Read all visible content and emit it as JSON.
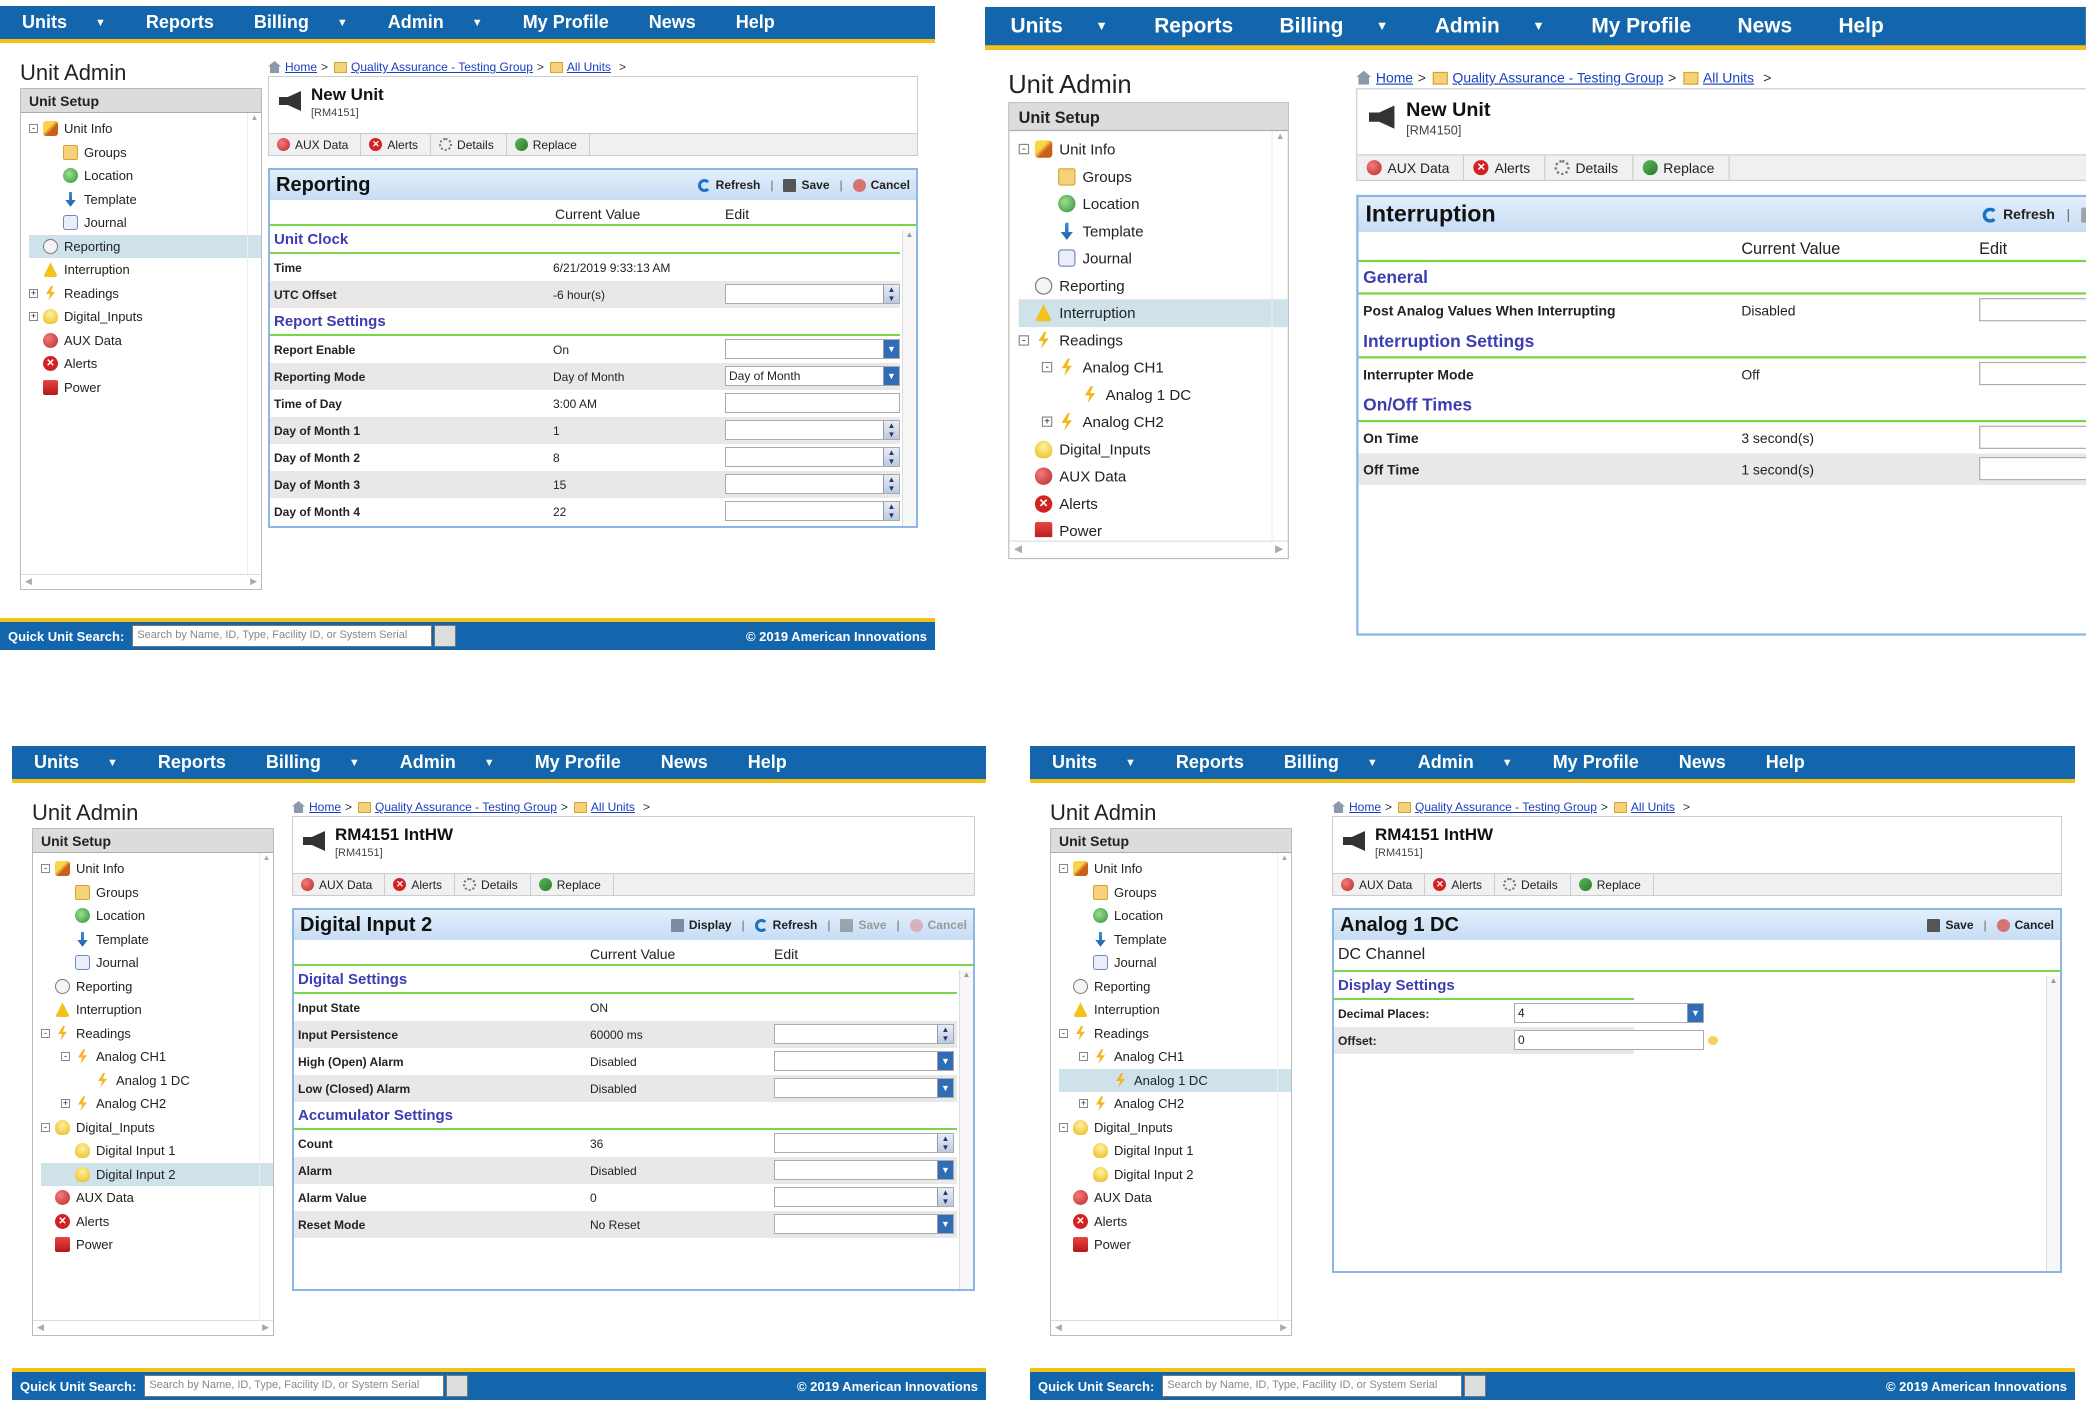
{
  "nav": {
    "items": [
      {
        "label": "Units",
        "dropdown": true
      },
      {
        "label": "Reports",
        "dropdown": false
      },
      {
        "label": "Billing",
        "dropdown": true
      },
      {
        "label": "Admin",
        "dropdown": true
      },
      {
        "label": "My Profile",
        "dropdown": false
      },
      {
        "label": "News",
        "dropdown": false
      },
      {
        "label": "Help",
        "dropdown": false
      }
    ]
  },
  "app_title": "Unit Admin",
  "sidebar_header": "Unit Setup",
  "breadcrumb": {
    "home": "Home",
    "group": "Quality Assurance - Testing Group",
    "all": "All Units",
    "sep": ">"
  },
  "tabs": [
    "AUX Data",
    "Alerts",
    "Details",
    "Replace"
  ],
  "actions": {
    "refresh": "Refresh",
    "save": "Save",
    "cancel": "Cancel",
    "display": "Display"
  },
  "columns": {
    "current": "Current Value",
    "edit": "Edit"
  },
  "footer": {
    "search_label": "Quick Unit Search:",
    "search_placeholder": "Search by Name, ID, Type, Facility ID, or System Serial",
    "copyright": "© 2019 American Innovations"
  },
  "colors": {
    "nav": "#1366ab",
    "accent": "#f2c318",
    "section": "#3b3eb0",
    "rule": "#7bd54a"
  },
  "panels": [
    {
      "unit_name": "New Unit",
      "unit_id": "[RM4151]",
      "tree": [
        {
          "label": "Unit Info",
          "icon": "pencil-icon",
          "level": 0,
          "exp": "-"
        },
        {
          "label": "Groups",
          "icon": "folder-icon",
          "level": 1
        },
        {
          "label": "Location",
          "icon": "globe-icon",
          "level": 1
        },
        {
          "label": "Template",
          "icon": "template-icon",
          "level": 1
        },
        {
          "label": "Journal",
          "icon": "journal-icon",
          "level": 1
        },
        {
          "label": "Reporting",
          "icon": "clock-icon",
          "level": 0,
          "selected": true
        },
        {
          "label": "Interruption",
          "icon": "warning-icon",
          "level": 0
        },
        {
          "label": "Readings",
          "icon": "bolt-icon",
          "level": 0,
          "exp": "+"
        },
        {
          "label": "Digital_Inputs",
          "icon": "bulb-icon",
          "level": 0,
          "exp": "+"
        },
        {
          "label": "AUX Data",
          "icon": "aux-data-icon",
          "level": 0
        },
        {
          "label": "Alerts",
          "icon": "alert-icon",
          "level": 0
        },
        {
          "label": "Power",
          "icon": "power-icon",
          "level": 0
        }
      ],
      "card": {
        "title": "Reporting",
        "actions": [
          "refresh",
          "save",
          "cancel"
        ],
        "disabled": [],
        "sections": [
          {
            "title": "Unit Clock",
            "rows": [
              {
                "label": "Time",
                "value": "6/21/2019 9:33:13 AM",
                "control": "none"
              },
              {
                "label": "UTC Offset",
                "value": "-6 hour(s)",
                "control": "spin",
                "input": ""
              }
            ]
          },
          {
            "title": "Report Settings",
            "rows": [
              {
                "label": "Report Enable",
                "value": "On",
                "control": "select",
                "input": ""
              },
              {
                "label": "Reporting Mode",
                "value": "Day of Month",
                "control": "select",
                "input": "Day of Month"
              },
              {
                "label": "Time of Day",
                "value": "3:00 AM",
                "control": "text",
                "input": ""
              },
              {
                "label": "Day of Month 1",
                "value": "1",
                "control": "spin",
                "input": ""
              },
              {
                "label": "Day of Month 2",
                "value": "8",
                "control": "spin",
                "input": ""
              },
              {
                "label": "Day of Month 3",
                "value": "15",
                "control": "spin",
                "input": ""
              },
              {
                "label": "Day of Month 4",
                "value": "22",
                "control": "spin",
                "input": ""
              }
            ]
          }
        ]
      }
    },
    {
      "unit_name": "New Unit",
      "unit_id": "[RM4150]",
      "tree": [
        {
          "label": "Unit Info",
          "icon": "pencil-icon",
          "level": 0,
          "exp": "-"
        },
        {
          "label": "Groups",
          "icon": "folder-icon",
          "level": 1
        },
        {
          "label": "Location",
          "icon": "globe-icon",
          "level": 1
        },
        {
          "label": "Template",
          "icon": "template-icon",
          "level": 1
        },
        {
          "label": "Journal",
          "icon": "journal-icon",
          "level": 1
        },
        {
          "label": "Reporting",
          "icon": "clock-icon",
          "level": 0
        },
        {
          "label": "Interruption",
          "icon": "warning-icon",
          "level": 0,
          "selected": true
        },
        {
          "label": "Readings",
          "icon": "bolt-icon",
          "level": 0,
          "exp": "-"
        },
        {
          "label": "Analog CH1",
          "icon": "bolt-icon",
          "level": 1,
          "exp": "-"
        },
        {
          "label": "Analog 1 DC",
          "icon": "bolt-icon",
          "level": 2
        },
        {
          "label": "Analog CH2",
          "icon": "bolt-icon",
          "level": 1,
          "exp": "+"
        },
        {
          "label": "Digital_Inputs",
          "icon": "bulb-icon",
          "level": 0
        },
        {
          "label": "AUX Data",
          "icon": "aux-data-icon",
          "level": 0
        },
        {
          "label": "Alerts",
          "icon": "alert-icon",
          "level": 0
        },
        {
          "label": "Power",
          "icon": "power-icon",
          "level": 0
        }
      ],
      "card": {
        "title": "Interruption",
        "actions": [
          "refresh",
          "save",
          "cancel"
        ],
        "disabled": [
          "save",
          "cancel"
        ],
        "sections": [
          {
            "title": "General",
            "rows": [
              {
                "label": "Post Analog Values When Interrupting",
                "value": "Disabled",
                "control": "select",
                "input": ""
              }
            ]
          },
          {
            "title": "Interruption Settings",
            "rows": [
              {
                "label": "Interrupter Mode",
                "value": "Off",
                "control": "select",
                "input": ""
              }
            ]
          },
          {
            "title": "On/Off Times",
            "rows": [
              {
                "label": "On Time",
                "value": "3 second(s)",
                "control": "spin",
                "input": ""
              },
              {
                "label": "Off Time",
                "value": "1 second(s)",
                "control": "spin",
                "input": ""
              }
            ]
          }
        ]
      }
    },
    {
      "unit_name": "RM4151 IntHW",
      "unit_id": "[RM4151]",
      "tree": [
        {
          "label": "Unit Info",
          "icon": "pencil-icon",
          "level": 0,
          "exp": "-"
        },
        {
          "label": "Groups",
          "icon": "folder-icon",
          "level": 1
        },
        {
          "label": "Location",
          "icon": "globe-icon",
          "level": 1
        },
        {
          "label": "Template",
          "icon": "template-icon",
          "level": 1
        },
        {
          "label": "Journal",
          "icon": "journal-icon",
          "level": 1
        },
        {
          "label": "Reporting",
          "icon": "clock-icon",
          "level": 0
        },
        {
          "label": "Interruption",
          "icon": "warning-icon",
          "level": 0
        },
        {
          "label": "Readings",
          "icon": "bolt-icon",
          "level": 0,
          "exp": "-"
        },
        {
          "label": "Analog CH1",
          "icon": "bolt-icon",
          "level": 1,
          "exp": "-"
        },
        {
          "label": "Analog 1 DC",
          "icon": "bolt-icon",
          "level": 2
        },
        {
          "label": "Analog CH2",
          "icon": "bolt-icon",
          "level": 1,
          "exp": "+"
        },
        {
          "label": "Digital_Inputs",
          "icon": "bulb-icon",
          "level": 0,
          "exp": "-"
        },
        {
          "label": "Digital Input 1",
          "icon": "bulb-icon",
          "level": 1
        },
        {
          "label": "Digital Input 2",
          "icon": "bulb-icon",
          "level": 1,
          "selected": true
        },
        {
          "label": "AUX Data",
          "icon": "aux-data-icon",
          "level": 0
        },
        {
          "label": "Alerts",
          "icon": "alert-icon",
          "level": 0
        },
        {
          "label": "Power",
          "icon": "power-icon",
          "level": 0
        }
      ],
      "card": {
        "title": "Digital Input 2",
        "actions": [
          "display",
          "refresh",
          "save",
          "cancel"
        ],
        "disabled": [
          "save",
          "cancel"
        ],
        "sections": [
          {
            "title": "Digital Settings",
            "rows": [
              {
                "label": "Input State",
                "value": "ON",
                "control": "none"
              },
              {
                "label": "Input Persistence",
                "value": "60000 ms",
                "control": "spin",
                "input": ""
              },
              {
                "label": "High (Open) Alarm",
                "value": "Disabled",
                "control": "select",
                "input": ""
              },
              {
                "label": "Low (Closed) Alarm",
                "value": "Disabled",
                "control": "select",
                "input": ""
              }
            ]
          },
          {
            "title": "Accumulator Settings",
            "rows": [
              {
                "label": "Count",
                "value": "36",
                "control": "spin",
                "input": ""
              },
              {
                "label": "Alarm",
                "value": "Disabled",
                "control": "select",
                "input": ""
              },
              {
                "label": "Alarm Value",
                "value": "0",
                "control": "spin",
                "input": ""
              },
              {
                "label": "Reset Mode",
                "value": "No Reset",
                "control": "select",
                "input": ""
              }
            ]
          }
        ]
      }
    },
    {
      "unit_name": "RM4151 IntHW",
      "unit_id": "[RM4151]",
      "tree": [
        {
          "label": "Unit Info",
          "icon": "pencil-icon",
          "level": 0,
          "exp": "-"
        },
        {
          "label": "Groups",
          "icon": "folder-icon",
          "level": 1
        },
        {
          "label": "Location",
          "icon": "globe-icon",
          "level": 1
        },
        {
          "label": "Template",
          "icon": "template-icon",
          "level": 1
        },
        {
          "label": "Journal",
          "icon": "journal-icon",
          "level": 1
        },
        {
          "label": "Reporting",
          "icon": "clock-icon",
          "level": 0
        },
        {
          "label": "Interruption",
          "icon": "warning-icon",
          "level": 0
        },
        {
          "label": "Readings",
          "icon": "bolt-icon",
          "level": 0,
          "exp": "-"
        },
        {
          "label": "Analog CH1",
          "icon": "bolt-icon",
          "level": 1,
          "exp": "-"
        },
        {
          "label": "Analog 1 DC",
          "icon": "bolt-icon",
          "level": 2,
          "selected": true
        },
        {
          "label": "Analog CH2",
          "icon": "bolt-icon",
          "level": 1,
          "exp": "+"
        },
        {
          "label": "Digital_Inputs",
          "icon": "bulb-icon",
          "level": 0,
          "exp": "-"
        },
        {
          "label": "Digital Input 1",
          "icon": "bulb-icon",
          "level": 1
        },
        {
          "label": "Digital Input 2",
          "icon": "bulb-icon",
          "level": 1
        },
        {
          "label": "AUX Data",
          "icon": "aux-data-icon",
          "level": 0
        },
        {
          "label": "Alerts",
          "icon": "alert-icon",
          "level": 0
        },
        {
          "label": "Power",
          "icon": "power-icon",
          "level": 0
        }
      ],
      "card": {
        "title": "Analog 1 DC",
        "subtitle": "DC Channel",
        "actions": [
          "save",
          "cancel"
        ],
        "disabled": [],
        "sections": [
          {
            "title": "Display Settings",
            "rows": [
              {
                "label": "Decimal Places:",
                "control": "select",
                "input": "4"
              },
              {
                "label": "Offset:",
                "control": "text",
                "input": "0",
                "hint": true
              }
            ]
          }
        ]
      }
    }
  ]
}
